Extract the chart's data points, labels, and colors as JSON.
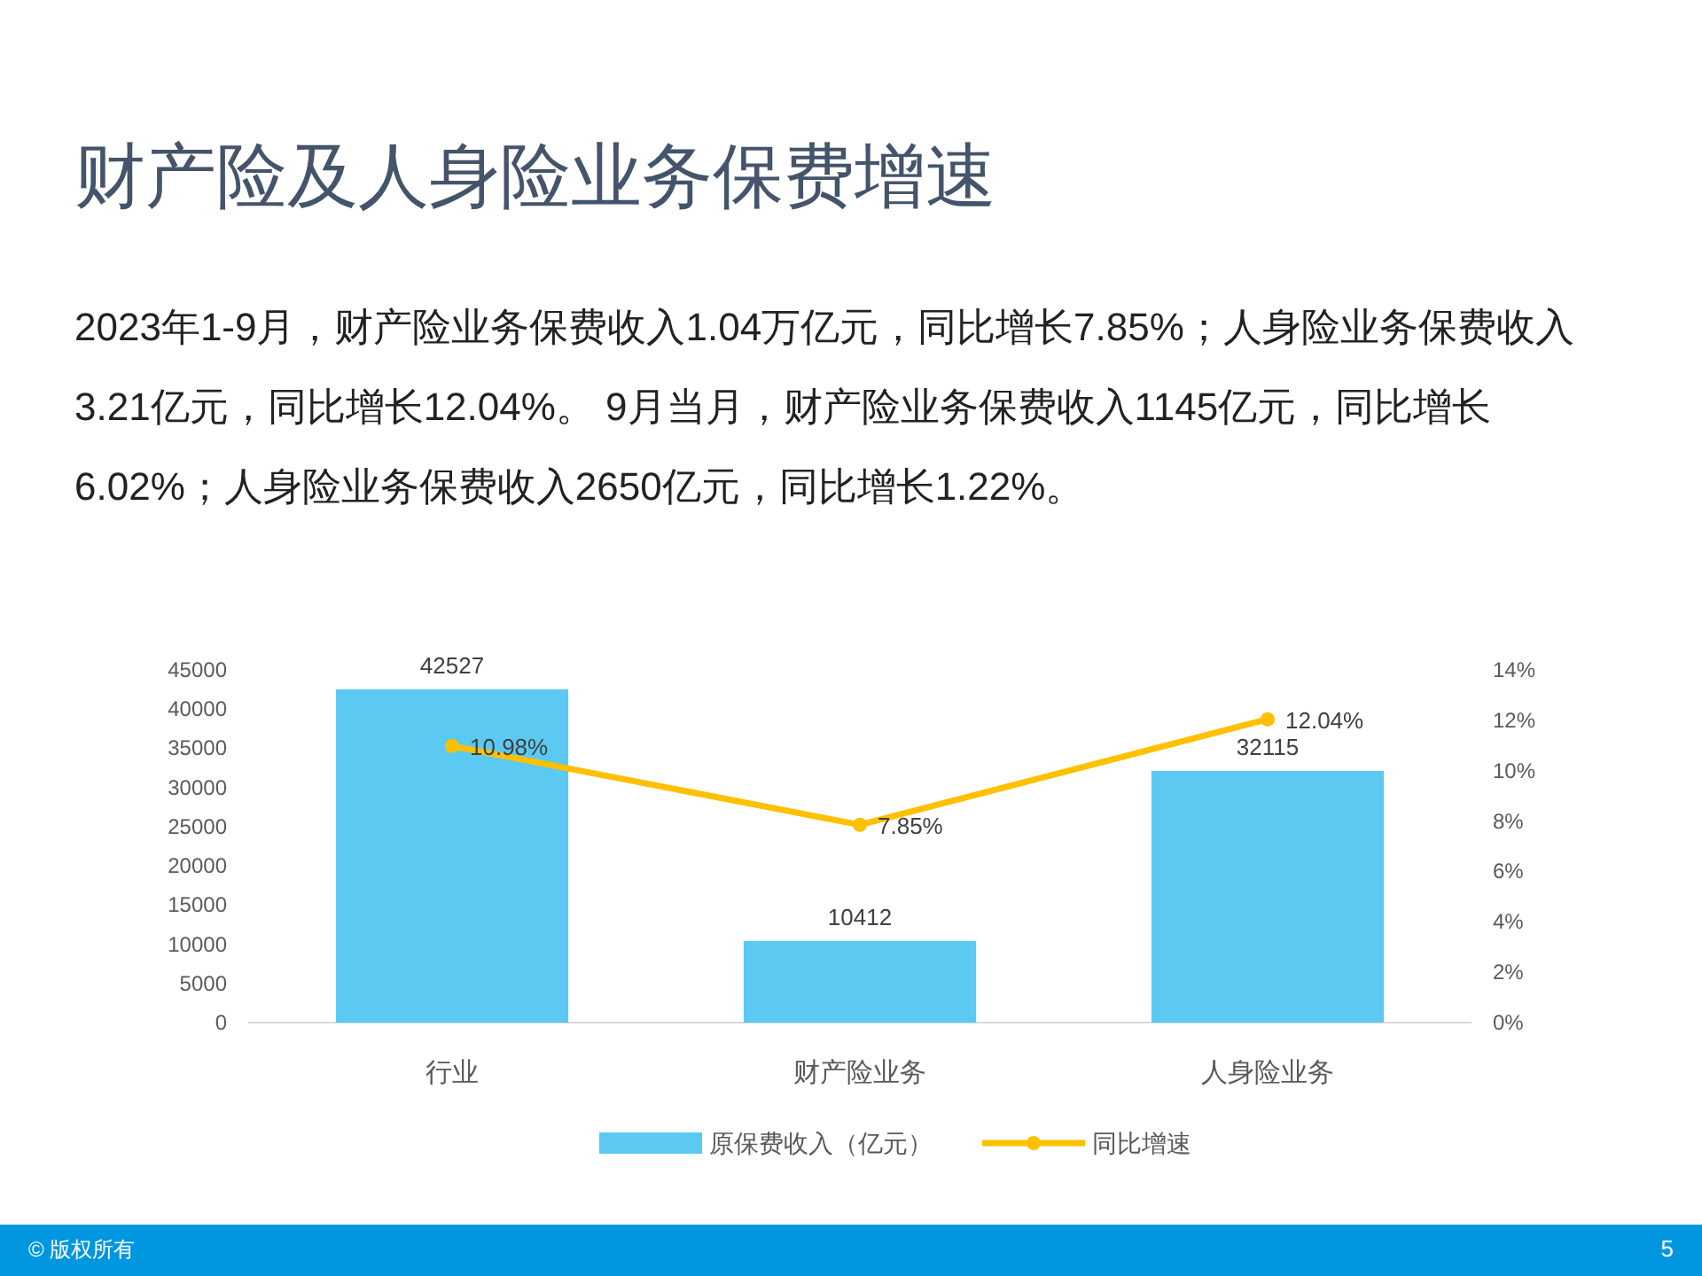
{
  "chart_data": {
    "type": "bar",
    "title": "财产险及人身险业务保费增速",
    "subtitle": "2023年1-9月，财产险业务保费收入1.04万亿元，同比增长7.85%；人身险业务保费收入3.21亿元，同比增长12.04%。 9月当月，财产险业务保费收入1145亿元，同比增长6.02%；人身险业务保费收入2650亿元，同比增长1.22%。",
    "categories": [
      "行业",
      "财产险业务",
      "人身险业务"
    ],
    "series": [
      {
        "name": "原保费收入（亿元）",
        "color": "#5bc9f2",
        "values": [
          42527,
          10412,
          32115
        ],
        "value_labels": [
          "42527",
          "10412",
          "32115"
        ]
      },
      {
        "name": "同比增速",
        "type": "line",
        "axis": "y2",
        "color": "#ffc000",
        "values": [
          10.98,
          7.85,
          12.04
        ],
        "value_labels": [
          "10.98%",
          "7.85%",
          "12.04%"
        ]
      }
    ],
    "ylim": [
      0,
      45000
    ],
    "yticks": [
      0,
      5000,
      10000,
      15000,
      20000,
      25000,
      30000,
      35000,
      40000,
      45000
    ],
    "y2lim": [
      0,
      14
    ],
    "y2ticks": [
      {
        "value": 0,
        "label": "0%"
      },
      {
        "value": 2,
        "label": "2%"
      },
      {
        "value": 4,
        "label": "4%"
      },
      {
        "value": 6,
        "label": "6%"
      },
      {
        "value": 8,
        "label": "8%"
      },
      {
        "value": 10,
        "label": "10%"
      },
      {
        "value": 12,
        "label": "12%"
      },
      {
        "value": 14,
        "label": "14%"
      }
    ],
    "marker": "circle",
    "legend": "bottom",
    "annotations": [
      "© 版权所有",
      "5"
    ]
  }
}
